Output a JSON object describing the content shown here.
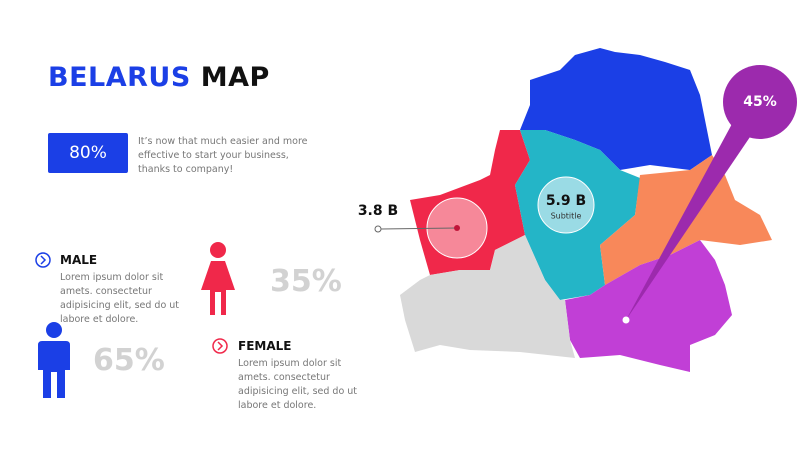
{
  "header": {
    "title_highlight": "BELARUS",
    "title_rest": "MAP"
  },
  "stat": {
    "value": "80%",
    "text": "It’s now that much easier and more effective to start your business, thanks to company!"
  },
  "male": {
    "label": "MALE",
    "text": "Lorem ipsum dolor sit amets. consectetur adipisicing elit, sed do ut labore et dolore.",
    "percent": "65%"
  },
  "female": {
    "label": "FEMALE",
    "text": "Lorem ipsum dolor sit amets. consectetur adipisicing elit, sed do ut labore et dolore.",
    "percent": "35%"
  },
  "map": {
    "west_value": "3.8 B",
    "central_value": "5.9 B",
    "central_subtitle": "Subtitle",
    "southeast_value": "45%"
  }
}
